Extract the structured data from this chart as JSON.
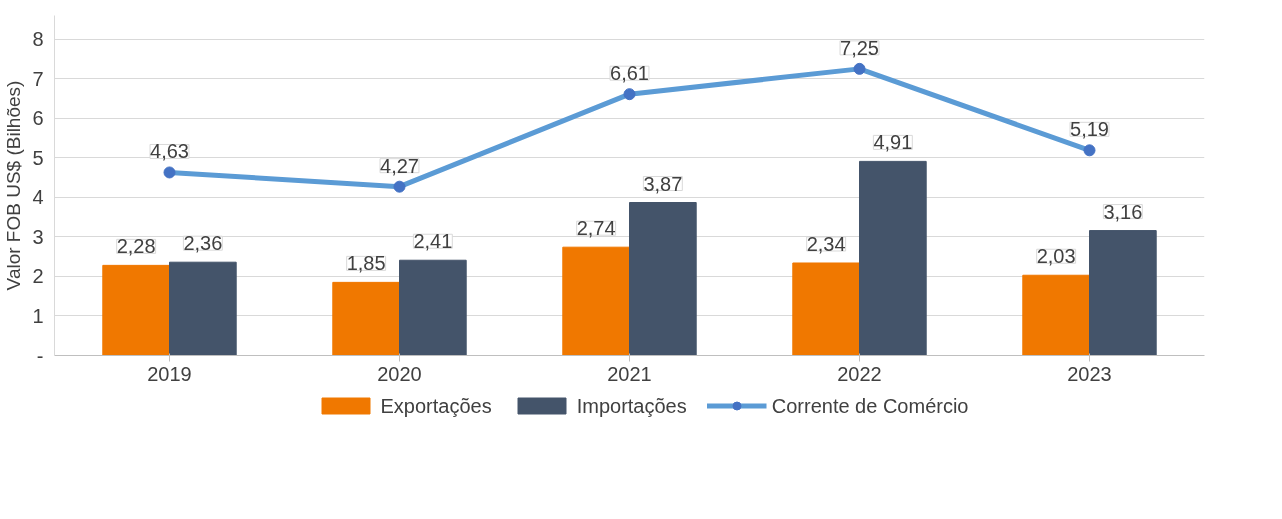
{
  "chart_data": {
    "type": "bar",
    "ylabel": "Valor FOB US$ (Bilhões)",
    "categories": [
      "2019",
      "2020",
      "2021",
      "2022",
      "2023"
    ],
    "series": [
      {
        "name": "Exportações",
        "color": "#f07800",
        "values": [
          2.28,
          1.85,
          2.74,
          2.34,
          2.03
        ],
        "value_labels": [
          "2,28",
          "1,85",
          "2,74",
          "2,34",
          "2,03"
        ]
      },
      {
        "name": "Importações",
        "color": "#44546a",
        "values": [
          2.36,
          2.41,
          3.87,
          4.91,
          3.16
        ],
        "value_labels": [
          "2,36",
          "2,41",
          "3,87",
          "4,91",
          "3,16"
        ]
      },
      {
        "name": "Corrente de Comércio",
        "type": "line",
        "marker": "circle",
        "color": "#5b9bd5",
        "values": [
          4.63,
          4.27,
          6.61,
          7.25,
          5.19
        ],
        "value_labels": [
          "4,63",
          "4,27",
          "6,61",
          "7,25",
          "5,19"
        ]
      }
    ],
    "ylim": [
      0,
      8.6
    ],
    "yticks": [
      {
        "value": 0,
        "label": "-"
      },
      1,
      2,
      3,
      4,
      5,
      6,
      7,
      8
    ],
    "grid": "y",
    "legend": "bottom"
  }
}
